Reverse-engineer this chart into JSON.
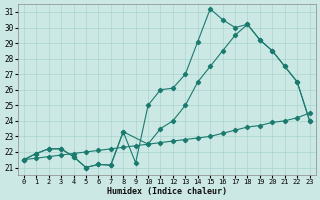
{
  "xlabel": "Humidex (Indice chaleur)",
  "bg_color": "#cce8e4",
  "grid_color": "#aad4d0",
  "line_color": "#1a7a6e",
  "xlim": [
    -0.5,
    23.5
  ],
  "ylim": [
    20.5,
    31.5
  ],
  "xticks": [
    0,
    1,
    2,
    3,
    4,
    5,
    6,
    7,
    8,
    9,
    10,
    11,
    12,
    13,
    14,
    15,
    16,
    17,
    18,
    19,
    20,
    21,
    22,
    23
  ],
  "yticks": [
    21,
    22,
    23,
    24,
    25,
    26,
    27,
    28,
    29,
    30,
    31
  ],
  "line1_x": [
    0,
    1,
    2,
    3,
    4,
    5,
    6,
    7,
    8,
    9,
    10,
    11,
    12,
    13,
    14,
    15,
    16,
    17,
    18,
    19,
    20,
    21,
    22,
    23
  ],
  "line1_y": [
    21.5,
    21.9,
    22.2,
    22.2,
    21.7,
    21.0,
    21.2,
    21.15,
    23.3,
    21.3,
    25.0,
    26.0,
    26.1,
    27.0,
    29.1,
    31.2,
    30.5,
    30.0,
    30.2,
    29.2,
    28.5,
    27.5,
    26.5,
    24.0
  ],
  "line2_x": [
    0,
    1,
    2,
    3,
    4,
    5,
    6,
    7,
    8,
    10,
    11,
    12,
    13,
    14,
    15,
    16,
    17,
    18,
    19,
    20,
    21,
    22,
    23
  ],
  "line2_y": [
    21.5,
    21.9,
    22.2,
    22.2,
    21.7,
    21.0,
    21.2,
    21.15,
    23.3,
    22.5,
    23.5,
    24.0,
    25.0,
    26.5,
    27.5,
    28.5,
    29.5,
    30.2,
    29.2,
    28.5,
    27.5,
    26.5,
    24.0
  ],
  "line3_x": [
    0,
    1,
    2,
    3,
    4,
    5,
    6,
    7,
    8,
    9,
    10,
    11,
    12,
    13,
    14,
    15,
    16,
    17,
    18,
    19,
    20,
    21,
    22,
    23
  ],
  "line3_y": [
    21.5,
    21.6,
    21.7,
    21.8,
    21.9,
    22.0,
    22.1,
    22.2,
    22.3,
    22.4,
    22.5,
    22.6,
    22.7,
    22.8,
    22.9,
    23.0,
    23.2,
    23.4,
    23.6,
    23.7,
    23.9,
    24.0,
    24.2,
    24.5
  ]
}
